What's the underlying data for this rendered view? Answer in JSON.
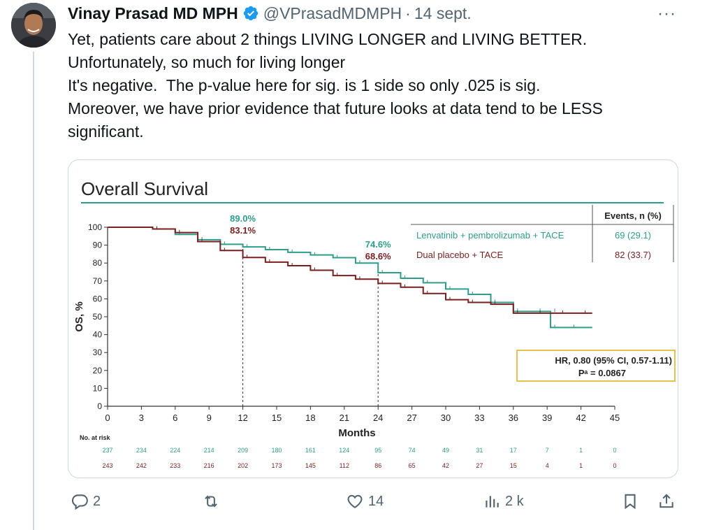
{
  "tweet": {
    "author_name": "Vinay Prasad MD MPH",
    "handle": "@VPrasadMDMPH",
    "separator": "·",
    "date": "14 sept.",
    "more_label": "···",
    "text_lines": [
      "Yet, patients care about 2 things LIVING LONGER and LIVING BETTER.",
      "Unfortunately, so much for living longer",
      "It's negative.  The p-value here for sig. is 1 side so only .025 is sig.",
      "Moreover, we have prior evidence that future looks at data tend to be LESS",
      "significant."
    ]
  },
  "chart_data": {
    "type": "line",
    "title": "Overall Survival",
    "xlabel": "Months",
    "ylabel": "OS, %",
    "xlim": [
      0,
      45
    ],
    "ylim": [
      0,
      100
    ],
    "x_ticks": [
      0,
      3,
      6,
      9,
      12,
      15,
      18,
      21,
      24,
      27,
      30,
      33,
      36,
      39,
      42,
      45
    ],
    "y_ticks": [
      0,
      10,
      20,
      30,
      40,
      50,
      60,
      70,
      80,
      90,
      100
    ],
    "series": [
      {
        "name": "Lenvatinib + pembrolizumab + TACE",
        "color": "#2e9e8a",
        "events": "69 (29.1)",
        "x": [
          0,
          2,
          4,
          6,
          8,
          10,
          12,
          14,
          16,
          18,
          20,
          22,
          24,
          26,
          28,
          30,
          32,
          34,
          36,
          38,
          39.3,
          39.3,
          41,
          43
        ],
        "y": [
          100,
          100,
          99,
          96,
          93,
          90.5,
          89,
          87.5,
          86,
          84.5,
          83,
          80,
          74.6,
          71.5,
          69,
          65.5,
          62.5,
          58,
          53,
          53,
          53,
          44,
          44,
          44
        ]
      },
      {
        "name": "Dual placebo + TACE",
        "color": "#7a1f1f",
        "events": "82 (33.7)",
        "x": [
          0,
          2,
          4,
          6,
          8,
          10,
          12,
          14,
          16,
          18,
          20,
          22,
          24,
          26,
          28,
          30,
          32,
          34,
          36,
          38,
          40,
          42,
          43
        ],
        "y": [
          100,
          100,
          99,
          97,
          92,
          87,
          83.1,
          80.5,
          78.5,
          76,
          73,
          71,
          68.6,
          66.5,
          63,
          59.5,
          58,
          57,
          52,
          52,
          52,
          52,
          52
        ]
      }
    ],
    "annotations": [
      {
        "x": 12,
        "labels": [
          "89.0%",
          "83.1%"
        ]
      },
      {
        "x": 24,
        "labels": [
          "74.6%",
          "68.6%"
        ]
      }
    ],
    "legend_header": "Events, n (%)",
    "hr_text": "HR, 0.80 (95% CI, 0.57-1.11)",
    "p_text": "Pᵃ = 0.0867",
    "risk_table": {
      "label": "No. at risk",
      "rows": [
        [
          "237",
          "234",
          "224",
          "214",
          "209",
          "180",
          "161",
          "124",
          "95",
          "74",
          "49",
          "31",
          "17",
          "7",
          "1",
          "0"
        ],
        [
          "243",
          "242",
          "233",
          "216",
          "202",
          "173",
          "145",
          "112",
          "86",
          "65",
          "42",
          "27",
          "15",
          "4",
          "1",
          "0"
        ]
      ]
    }
  },
  "actions": {
    "reply_count": "2",
    "retweet_count": "",
    "like_count": "14",
    "views_count": "2 k"
  },
  "colors": {
    "accent": "#1d9bf0",
    "muted": "#536471",
    "teal": "#2e9e8a",
    "maroon": "#7a1f1f",
    "hr_box": "#e6c34d"
  }
}
